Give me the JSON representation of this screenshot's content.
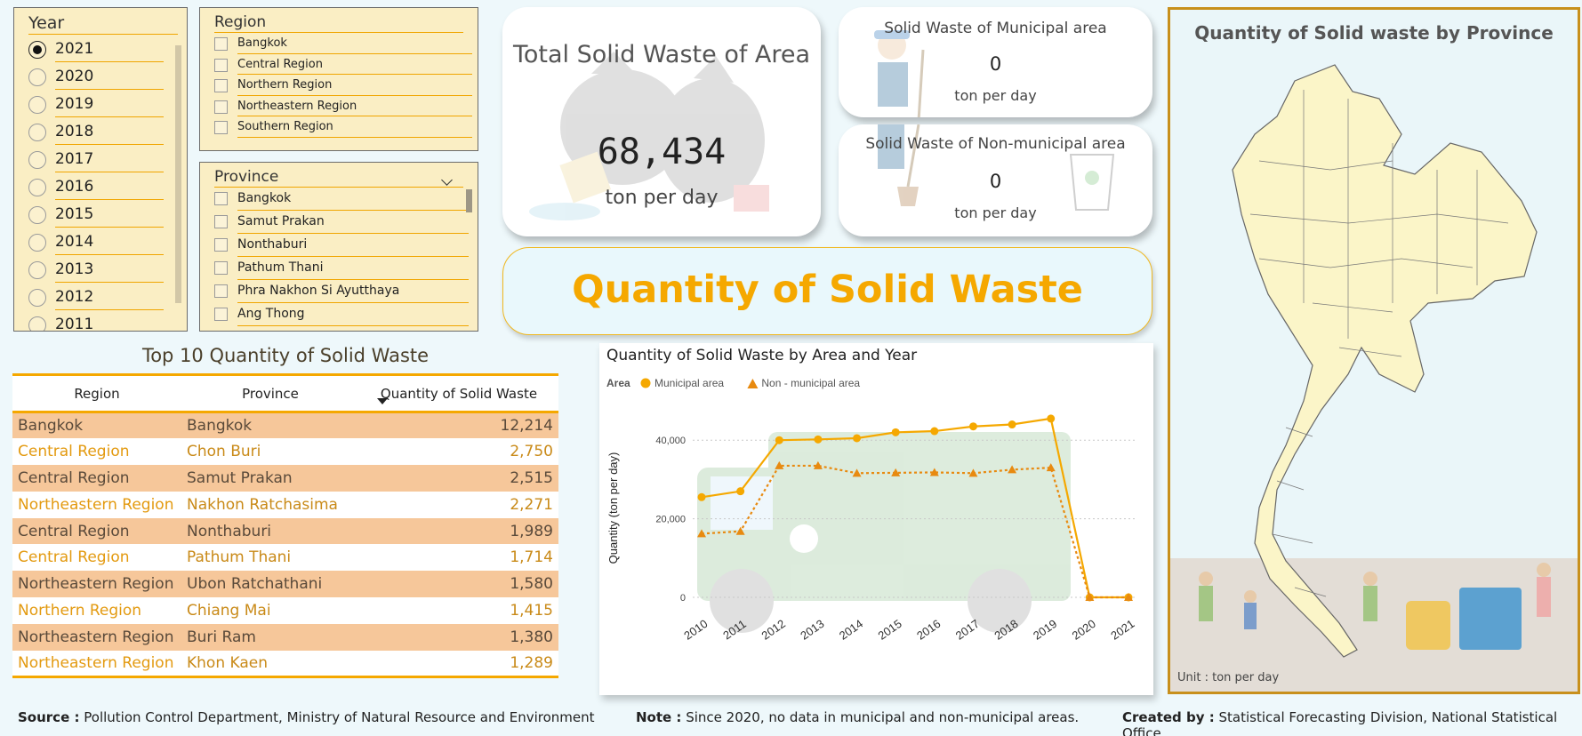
{
  "year_slicer": {
    "title": "Year",
    "options": [
      "2021",
      "2020",
      "2019",
      "2018",
      "2017",
      "2016",
      "2015",
      "2014",
      "2013",
      "2012",
      "2011"
    ],
    "selected": "2021"
  },
  "region_slicer": {
    "title": "Region",
    "options": [
      "Bangkok",
      "Central Region",
      "Northern Region",
      "Northeastern Region",
      "Southern Region"
    ]
  },
  "province_slicer": {
    "title": "Province",
    "options": [
      "Bangkok",
      "Samut Prakan",
      "Nonthaburi",
      "Pathum Thani",
      "Phra Nakhon Si Ayutthaya",
      "Ang Thong"
    ]
  },
  "total_card": {
    "title": "Total Solid Waste of Area",
    "value": "68,434",
    "unit": "ton per day"
  },
  "municipal_card": {
    "title": "Solid Waste of Municipal area",
    "value": "0",
    "unit": "ton per day"
  },
  "nonmunicipal_card": {
    "title": "Solid Waste of Non-municipal area",
    "value": "0",
    "unit": "ton per day"
  },
  "banner": {
    "title": "Quantity of Solid Waste"
  },
  "top_table": {
    "title": "Top 10 Quantity of Solid Waste",
    "headers": [
      "Region",
      "Province",
      "Quantity of Solid Waste"
    ],
    "rows": [
      [
        "Bangkok",
        "Bangkok",
        "12,214"
      ],
      [
        "Central Region",
        "Chon Buri",
        "2,750"
      ],
      [
        "Central Region",
        "Samut Prakan",
        "2,515"
      ],
      [
        "Northeastern Region",
        "Nakhon Ratchasima",
        "2,271"
      ],
      [
        "Central Region",
        "Nonthaburi",
        "1,989"
      ],
      [
        "Central Region",
        "Pathum Thani",
        "1,714"
      ],
      [
        "Northeastern Region",
        "Ubon Ratchathani",
        "1,580"
      ],
      [
        "Northern Region",
        "Chiang Mai",
        "1,415"
      ],
      [
        "Northeastern Region",
        "Buri Ram",
        "1,380"
      ],
      [
        "Northeastern Region",
        "Khon Kaen",
        "1,289"
      ]
    ]
  },
  "chart_data": {
    "type": "line",
    "title": "Quantity of Solid Waste by Area and Year",
    "legend_title": "Area",
    "legend_position": "top-left",
    "x": [
      "2010",
      "2011",
      "2012",
      "2013",
      "2014",
      "2015",
      "2016",
      "2017",
      "2018",
      "2019",
      "2020",
      "2021"
    ],
    "series": [
      {
        "name": "Municipal area",
        "values": [
          25500,
          27000,
          40000,
          40200,
          40500,
          42000,
          42300,
          43500,
          44000,
          45500,
          0,
          0
        ],
        "color": "#f5a800",
        "marker": "circle",
        "dash": "solid"
      },
      {
        "name": "Non - municipal area",
        "values": [
          16200,
          16800,
          33500,
          33500,
          31600,
          31700,
          31800,
          31600,
          32500,
          33000,
          0,
          0
        ],
        "color": "#e88a10",
        "marker": "triangle",
        "dash": "dotted"
      }
    ],
    "ylabel": "Quantity (ton per day)",
    "xlabel": "",
    "ylim": [
      0,
      50000
    ],
    "yticks": [
      "0",
      "20,000",
      "40,000"
    ],
    "ytick_values": [
      0,
      20000,
      40000
    ],
    "grid": true
  },
  "map": {
    "title": "Quantity of Solid waste by Province",
    "unit_note": "Unit : ton per day"
  },
  "footer": {
    "source_label": "Source :",
    "source_text": "Pollution Control Department, Ministry of Natural Resource and Environment",
    "note_label": "Note :",
    "note_text": "Since 2020, no data in municipal and non-municipal areas.",
    "created_label": "Created by :",
    "created_text": "Statistical Forecasting Division, National Statistical Office"
  },
  "colors": {
    "accent": "#f5a800",
    "slicer_bg": "#faeec4",
    "row_alt": "#f6c79a",
    "map_border": "#c8901c"
  }
}
